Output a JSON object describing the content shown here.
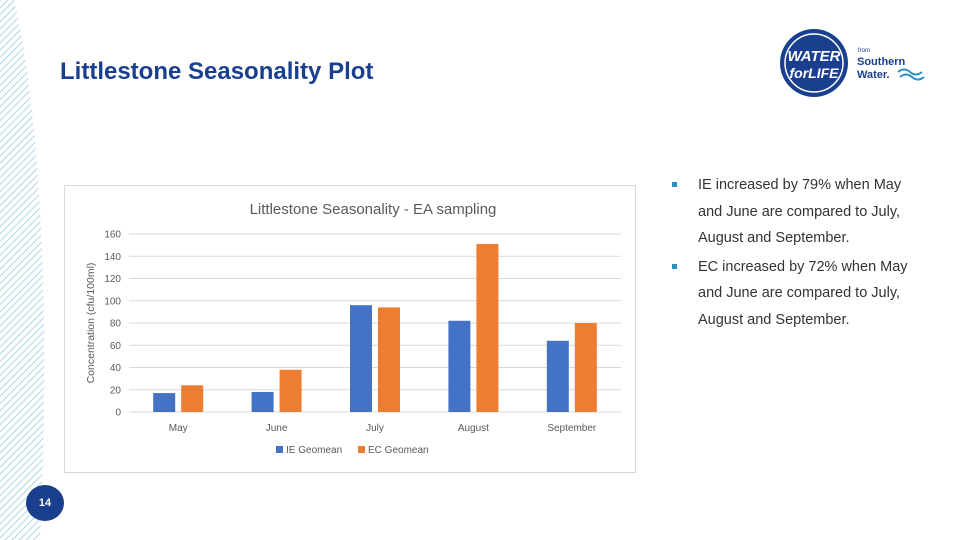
{
  "slide": {
    "title": "Littlestone Seasonality Plot",
    "page_number": "14"
  },
  "logo": {
    "line1": "WATER",
    "line2": "forLIFE",
    "from": "from",
    "brand1": "Southern",
    "brand2": "Water."
  },
  "bullets": [
    "IE increased by 79% when May and June are compared to July, August and September.",
    "EC increased by 72% when May and June are compared to July, August and September."
  ],
  "colors": {
    "title": "#1b3f8f",
    "ie": "#4472c4",
    "ec": "#ed7d31",
    "bullet": "#2b8fc1",
    "stripes": "#9cc9e3"
  },
  "chart_data": {
    "type": "bar",
    "title": "Littlestone Seasonality - EA sampling",
    "xlabel": "",
    "ylabel": "Concentration (cfu/100ml)",
    "categories": [
      "May",
      "June",
      "July",
      "August",
      "September"
    ],
    "series": [
      {
        "name": "IE Geomean",
        "values": [
          17,
          18,
          96,
          82,
          64
        ]
      },
      {
        "name": "EC Geomean",
        "values": [
          24,
          38,
          94,
          151,
          80
        ]
      }
    ],
    "ylim": [
      0,
      160
    ],
    "yticks": [
      "0",
      "20",
      "40",
      "60",
      "80",
      "100",
      "120",
      "140",
      "160"
    ],
    "grid": true,
    "legend": "bottom"
  }
}
